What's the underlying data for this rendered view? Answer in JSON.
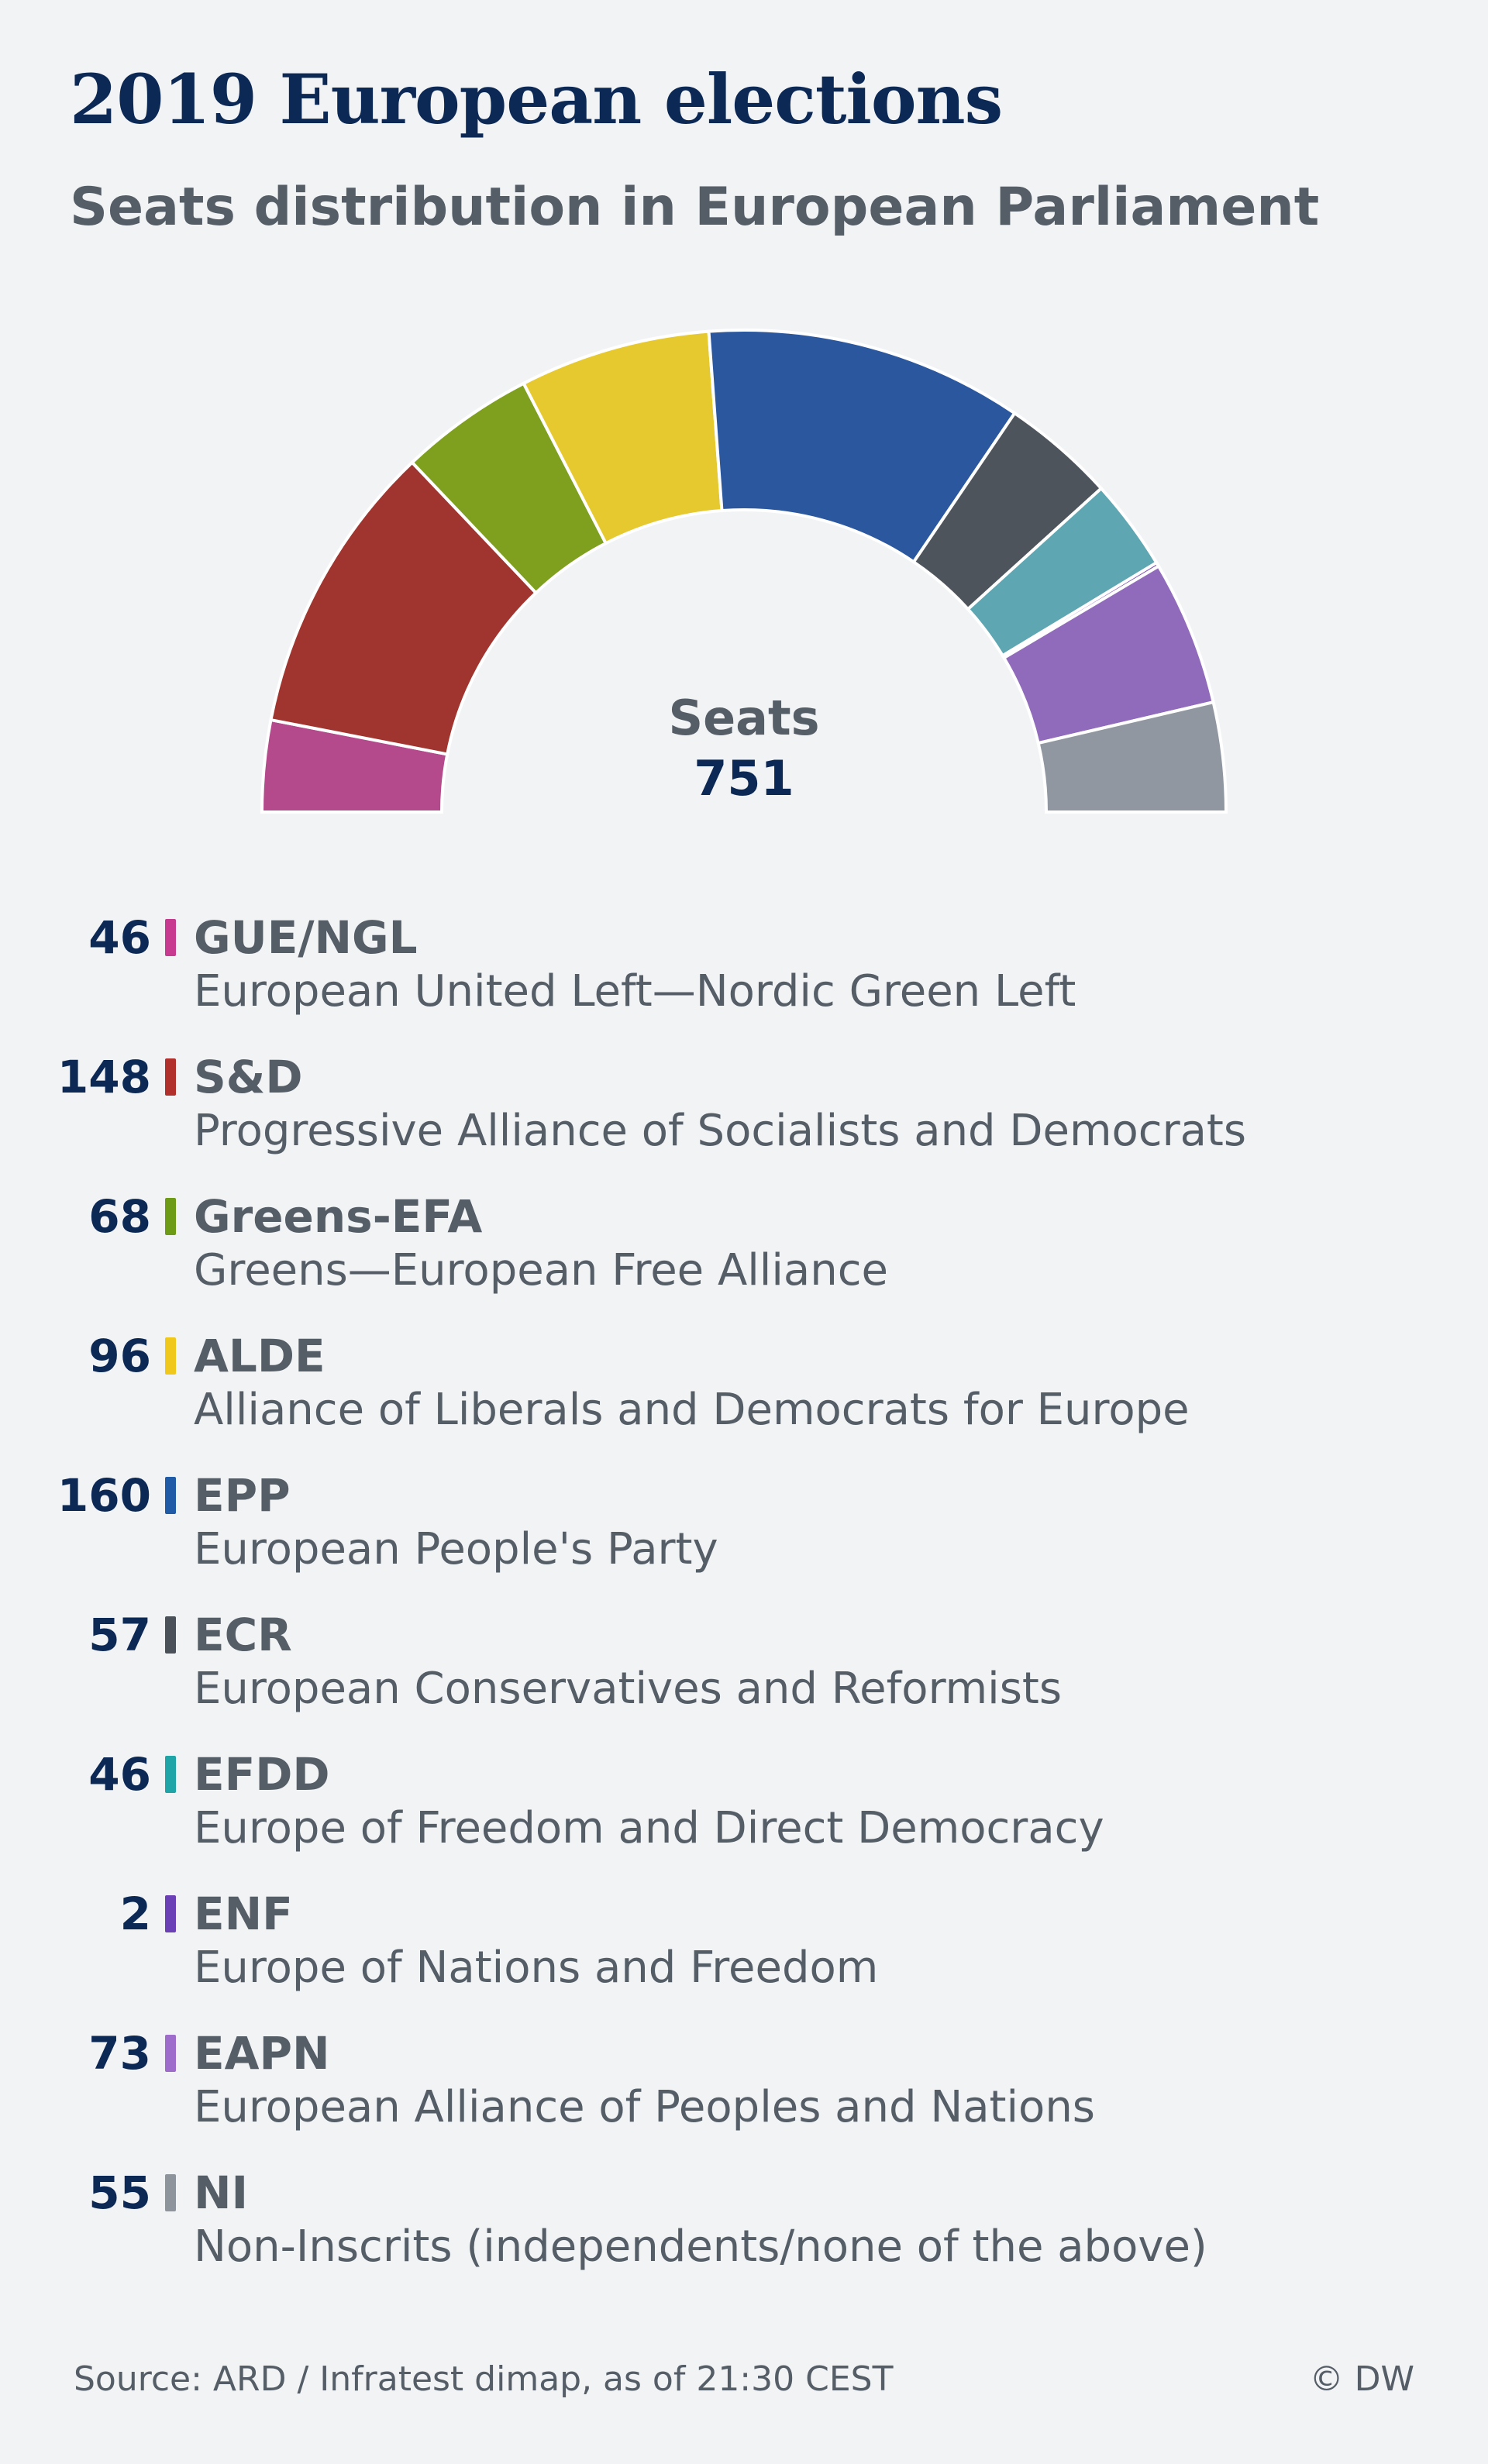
{
  "header": {
    "title": "2019 European elections",
    "subtitle": "Seats distribution in European Parliament"
  },
  "center": {
    "label": "Seats",
    "total": "751"
  },
  "chart_data": {
    "type": "pie",
    "variant": "half-donut (hemicycle)",
    "title": "2019 European elections",
    "subtitle": "Seats distribution in European Parliament",
    "total": 751,
    "series": [
      {
        "name": "GUE/NGL",
        "value": 46,
        "color": "#b4498b",
        "fullname": "European United Left—Nordic Green Left"
      },
      {
        "name": "S&D",
        "value": 148,
        "color": "#a0342e",
        "fullname": "Progressive Alliance of Socialists and Democrats"
      },
      {
        "name": "Greens-EFA",
        "value": 68,
        "color": "#7fa01e",
        "fullname": "Greens—European Free Alliance"
      },
      {
        "name": "ALDE",
        "value": 96,
        "color": "#e6c92e",
        "fullname": "Alliance of Liberals and Democrats for Europe"
      },
      {
        "name": "EPP",
        "value": 160,
        "color": "#2b579e",
        "fullname": "European People's Party"
      },
      {
        "name": "ECR",
        "value": 57,
        "color": "#4e545c",
        "fullname": "European Conservatives and Reformists"
      },
      {
        "name": "EFDD",
        "value": 46,
        "color": "#5ea6b1",
        "fullname": "Europe of Freedom and Direct Democracy"
      },
      {
        "name": "ENF",
        "value": 2,
        "color": "#7a4bb7",
        "fullname": "Europe of Nations and Freedom"
      },
      {
        "name": "EAPN",
        "value": 73,
        "color": "#906bbb",
        "fullname": "European Alliance of Peoples and Nations"
      },
      {
        "name": "NI",
        "value": 55,
        "color": "#9097a0",
        "fullname": "Non-Inscrits (independents/none of the above)"
      }
    ]
  },
  "legend_bar_colors": [
    "#c83a8f",
    "#b2302c",
    "#6e9b16",
    "#f0c81c",
    "#1f5ba6",
    "#4b5159",
    "#1fa5a8",
    "#6b3fb5",
    "#9e6ccb",
    "#8d949c"
  ],
  "footer": {
    "source": "Source: ARD / Infratest dimap, as of 21:30 CEST",
    "credit": "© DW"
  }
}
